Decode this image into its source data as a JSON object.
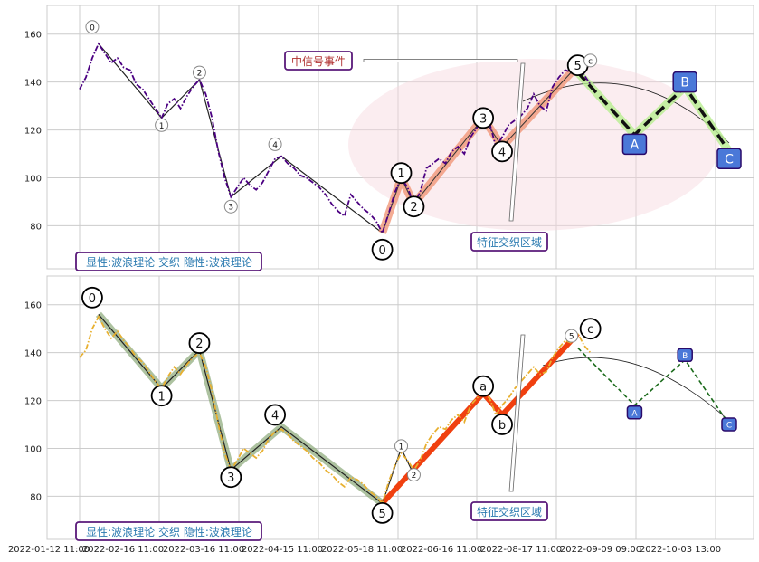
{
  "chart_data": [
    {
      "type": "line",
      "panel": "top",
      "ylim": [
        62,
        172
      ],
      "yticks": [
        80,
        100,
        120,
        140,
        160
      ],
      "grid": true,
      "price_series": {
        "style": "dash-dot",
        "color": "#4b0082",
        "values": [
          [
            0,
            137
          ],
          [
            1,
            142
          ],
          [
            2,
            150
          ],
          [
            3,
            156
          ],
          [
            4,
            152
          ],
          [
            5,
            148
          ],
          [
            6,
            150
          ],
          [
            7,
            146
          ],
          [
            8,
            145
          ],
          [
            9,
            139
          ],
          [
            10,
            137
          ],
          [
            11,
            133
          ],
          [
            12,
            129
          ],
          [
            13,
            125
          ],
          [
            14,
            131
          ],
          [
            15,
            133
          ],
          [
            16,
            129
          ],
          [
            17,
            134
          ],
          [
            18,
            138
          ],
          [
            19,
            141
          ],
          [
            20,
            135
          ],
          [
            21,
            125
          ],
          [
            22,
            111
          ],
          [
            23,
            100
          ],
          [
            24,
            92
          ],
          [
            25,
            96
          ],
          [
            26,
            100
          ],
          [
            27,
            97
          ],
          [
            28,
            95
          ],
          [
            29,
            98
          ],
          [
            30,
            103
          ],
          [
            31,
            108
          ],
          [
            32,
            109
          ],
          [
            33,
            106
          ],
          [
            34,
            104
          ],
          [
            35,
            101
          ],
          [
            36,
            100
          ],
          [
            37,
            98
          ],
          [
            38,
            96
          ],
          [
            39,
            93
          ],
          [
            40,
            89
          ],
          [
            41,
            86
          ],
          [
            42,
            84
          ],
          [
            43,
            93
          ],
          [
            44,
            90
          ],
          [
            45,
            87
          ],
          [
            46,
            85
          ],
          [
            47,
            82
          ],
          [
            48,
            77
          ],
          [
            49,
            85
          ],
          [
            50,
            94
          ],
          [
            51,
            100
          ],
          [
            52,
            96
          ],
          [
            53,
            89
          ],
          [
            54,
            94
          ],
          [
            55,
            104
          ],
          [
            56,
            106
          ],
          [
            57,
            108
          ],
          [
            58,
            106
          ],
          [
            59,
            111
          ],
          [
            60,
            113
          ],
          [
            61,
            110
          ],
          [
            62,
            117
          ],
          [
            63,
            121
          ],
          [
            64,
            125
          ],
          [
            65,
            123
          ],
          [
            66,
            113
          ],
          [
            67,
            117
          ],
          [
            68,
            122
          ],
          [
            69,
            124
          ],
          [
            70,
            126
          ],
          [
            71,
            129
          ],
          [
            72,
            135
          ],
          [
            73,
            130
          ],
          [
            74,
            128
          ],
          [
            75,
            138
          ],
          [
            76,
            142
          ],
          [
            77,
            145
          ],
          [
            78,
            144
          ],
          [
            79,
            147
          ],
          [
            80,
            143
          ],
          [
            81,
            139
          ]
        ]
      },
      "wave_lines": [
        {
          "kind": "thin",
          "color": "#222222",
          "points": [
            [
              3,
              156
            ],
            [
              13,
              125
            ],
            [
              19,
              141
            ],
            [
              24,
              92
            ],
            [
              32,
              109
            ],
            [
              48,
              77
            ]
          ]
        },
        {
          "kind": "thick",
          "color": "#f09070",
          "points": [
            [
              48,
              77
            ],
            [
              51,
              100
            ],
            [
              53,
              89
            ],
            [
              64,
              125
            ],
            [
              67,
              113
            ],
            [
              79,
              147
            ]
          ]
        },
        {
          "kind": "projection",
          "color": "#111111",
          "points": [
            [
              79,
              144
            ],
            [
              88,
              118
            ],
            [
              96,
              138
            ],
            [
              103,
              111
            ]
          ]
        }
      ],
      "pivot_labels": [
        {
          "text": "0",
          "x": 2,
          "y": 163,
          "size": "small"
        },
        {
          "text": "1",
          "x": 13,
          "y": 122,
          "size": "small"
        },
        {
          "text": "2",
          "x": 19,
          "y": 144,
          "size": "small"
        },
        {
          "text": "3",
          "x": 24,
          "y": 88,
          "size": "small"
        },
        {
          "text": "4",
          "x": 31,
          "y": 114,
          "size": "small"
        },
        {
          "text": "0",
          "x": 48,
          "y": 70,
          "size": "large"
        },
        {
          "text": "1",
          "x": 51,
          "y": 102,
          "size": "large"
        },
        {
          "text": "2",
          "x": 53,
          "y": 88,
          "size": "large"
        },
        {
          "text": "3",
          "x": 64,
          "y": 125,
          "size": "large"
        },
        {
          "text": "4",
          "x": 67,
          "y": 111,
          "size": "large"
        },
        {
          "text": "5",
          "x": 79,
          "y": 147,
          "size": "large"
        },
        {
          "text": "c",
          "x": 81,
          "y": 149,
          "size": "small"
        }
      ],
      "projection_boxes": [
        {
          "text": "A",
          "x": 88,
          "y": 114
        },
        {
          "text": "B",
          "x": 96,
          "y": 140
        },
        {
          "text": "C",
          "x": 103,
          "y": 108
        }
      ],
      "annotation_labels": {
        "signal": "中信号事件",
        "zone": "特征交织区域",
        "footer": "显性:波浪理论 交织 隐性:波浪理论"
      }
    },
    {
      "type": "line",
      "panel": "bottom",
      "ylim": [
        62,
        172
      ],
      "yticks": [
        80,
        100,
        120,
        140,
        160
      ],
      "grid": true,
      "x_tick_labels": [
        "2022-01-12 11:00",
        "2022-02-16 11:00",
        "2022-03-16 11:00",
        "2022-04-15 11:00",
        "2022-05-18 11:00",
        "2022-06-16 11:00",
        "2022-08-17 11:00",
        "2022-09-09 09:00",
        "2022-10-03 13:00"
      ],
      "price_series": {
        "style": "dash-dot",
        "color": "#e8b030",
        "values": [
          [
            0,
            138
          ],
          [
            1,
            141
          ],
          [
            2,
            150
          ],
          [
            3,
            155
          ],
          [
            4,
            150
          ],
          [
            5,
            146
          ],
          [
            6,
            149
          ],
          [
            7,
            145
          ],
          [
            8,
            142
          ],
          [
            9,
            138
          ],
          [
            10,
            136
          ],
          [
            11,
            132
          ],
          [
            12,
            128
          ],
          [
            13,
            125
          ],
          [
            14,
            130
          ],
          [
            15,
            134
          ],
          [
            16,
            131
          ],
          [
            17,
            135
          ],
          [
            18,
            138
          ],
          [
            19,
            140
          ],
          [
            20,
            134
          ],
          [
            21,
            124
          ],
          [
            22,
            110
          ],
          [
            23,
            98
          ],
          [
            24,
            91
          ],
          [
            25,
            95
          ],
          [
            26,
            100
          ],
          [
            27,
            98
          ],
          [
            28,
            96
          ],
          [
            29,
            99
          ],
          [
            30,
            104
          ],
          [
            31,
            107
          ],
          [
            32,
            108
          ],
          [
            33,
            106
          ],
          [
            34,
            103
          ],
          [
            35,
            101
          ],
          [
            36,
            99
          ],
          [
            37,
            96
          ],
          [
            38,
            94
          ],
          [
            39,
            91
          ],
          [
            40,
            89
          ],
          [
            41,
            86
          ],
          [
            42,
            84
          ],
          [
            43,
            88
          ],
          [
            44,
            87
          ],
          [
            45,
            85
          ],
          [
            46,
            82
          ],
          [
            47,
            80
          ],
          [
            48,
            77
          ],
          [
            49,
            86
          ],
          [
            50,
            93
          ],
          [
            51,
            98
          ],
          [
            52,
            95
          ],
          [
            53,
            91
          ],
          [
            54,
            95
          ],
          [
            55,
            102
          ],
          [
            56,
            106
          ],
          [
            57,
            109
          ],
          [
            58,
            108
          ],
          [
            59,
            112
          ],
          [
            60,
            114
          ],
          [
            61,
            111
          ],
          [
            62,
            118
          ],
          [
            63,
            121
          ],
          [
            64,
            123
          ],
          [
            65,
            121
          ],
          [
            66,
            114
          ],
          [
            67,
            118
          ],
          [
            68,
            121
          ],
          [
            69,
            125
          ],
          [
            70,
            128
          ],
          [
            71,
            131
          ],
          [
            72,
            134
          ],
          [
            73,
            131
          ],
          [
            74,
            132
          ],
          [
            75,
            138
          ],
          [
            76,
            142
          ],
          [
            77,
            145
          ],
          [
            78,
            144
          ],
          [
            79,
            148
          ],
          [
            80,
            143
          ],
          [
            81,
            140
          ]
        ]
      },
      "wave_lines": [
        {
          "kind": "thick-green",
          "color": "#8aa878",
          "points": [
            [
              3,
              156
            ],
            [
              13,
              125
            ],
            [
              19,
              141
            ],
            [
              24,
              91
            ],
            [
              32,
              109
            ],
            [
              48,
              77
            ]
          ]
        },
        {
          "kind": "thin",
          "color": "#222222",
          "points": [
            [
              3,
              156
            ],
            [
              13,
              125
            ],
            [
              19,
              141
            ],
            [
              24,
              91
            ],
            [
              32,
              109
            ],
            [
              48,
              77
            ]
          ]
        },
        {
          "kind": "thick",
          "color": "#f04010",
          "points": [
            [
              48,
              77
            ],
            [
              64,
              123
            ],
            [
              67,
              114
            ],
            [
              79,
              148
            ]
          ]
        },
        {
          "kind": "thin",
          "color": "#222222",
          "points": [
            [
              48,
              77
            ],
            [
              51,
              100
            ],
            [
              53,
              89
            ]
          ]
        },
        {
          "kind": "projection",
          "color": "#111111",
          "points": [
            [
              79,
              142
            ],
            [
              88,
              118
            ],
            [
              96,
              137
            ],
            [
              103,
              110
            ]
          ]
        }
      ],
      "pivot_labels": [
        {
          "text": "0",
          "x": 2,
          "y": 163,
          "size": "large"
        },
        {
          "text": "1",
          "x": 13,
          "y": 122,
          "size": "large"
        },
        {
          "text": "2",
          "x": 19,
          "y": 144,
          "size": "large"
        },
        {
          "text": "3",
          "x": 24,
          "y": 88,
          "size": "large"
        },
        {
          "text": "4",
          "x": 31,
          "y": 114,
          "size": "large"
        },
        {
          "text": "5",
          "x": 48,
          "y": 73,
          "size": "large"
        },
        {
          "text": "1",
          "x": 51,
          "y": 101,
          "size": "small"
        },
        {
          "text": "2",
          "x": 53,
          "y": 89,
          "size": "small"
        },
        {
          "text": "a",
          "x": 64,
          "y": 126,
          "size": "large"
        },
        {
          "text": "b",
          "x": 67,
          "y": 110,
          "size": "large"
        },
        {
          "text": "5",
          "x": 78,
          "y": 147,
          "size": "small"
        },
        {
          "text": "c",
          "x": 81,
          "y": 150,
          "size": "large"
        }
      ],
      "projection_boxes": [
        {
          "text": "A",
          "x": 88,
          "y": 115
        },
        {
          "text": "B",
          "x": 96,
          "y": 139
        },
        {
          "text": "C",
          "x": 103,
          "y": 110
        }
      ],
      "annotation_labels": {
        "zone": "特征交织区域",
        "footer": "显性:波浪理论 交织 隐性:波浪理论"
      }
    }
  ]
}
